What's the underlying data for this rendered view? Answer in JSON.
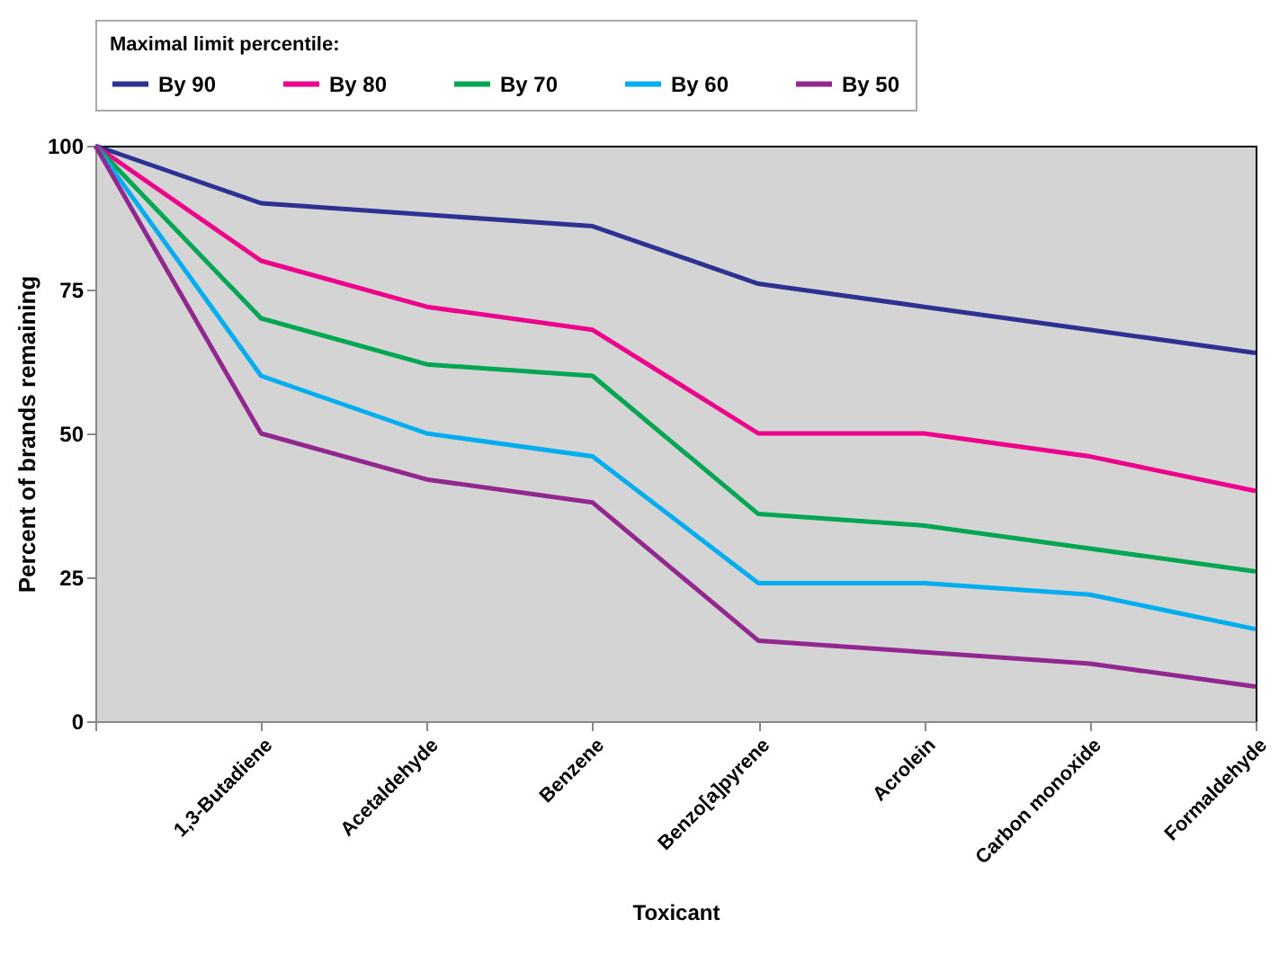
{
  "chart_data": {
    "type": "line",
    "xlabel": "Toxicant",
    "ylabel": "Percent of brands remaining",
    "legend_title": "Maximal limit percentile:",
    "legend": "top",
    "categories": [
      null,
      "1,3-Butadiene",
      "Acetaldehyde",
      "Benzene",
      "Benzo[a]pyrene",
      "Acrolein",
      "Carbon monoxide",
      "Formaldehyde"
    ],
    "ylim": [
      0,
      100
    ],
    "yticks": [
      0,
      25,
      50,
      75,
      100
    ],
    "grid": false,
    "marker": "none",
    "line_style": "solid",
    "series": [
      {
        "name": "By 90",
        "color": "#2e3192",
        "values": [
          100,
          90,
          88,
          86,
          76,
          72,
          68,
          64
        ]
      },
      {
        "name": "By 80",
        "color": "#ec008c",
        "values": [
          100,
          80,
          72,
          68,
          50,
          50,
          46,
          40
        ]
      },
      {
        "name": "By 70",
        "color": "#00a651",
        "values": [
          100,
          70,
          62,
          60,
          36,
          34,
          30,
          26
        ]
      },
      {
        "name": "By 60",
        "color": "#00aeef",
        "values": [
          100,
          60,
          50,
          46,
          24,
          24,
          22,
          16
        ]
      },
      {
        "name": "By 50",
        "color": "#92278f",
        "values": [
          100,
          50,
          42,
          38,
          14,
          12,
          10,
          6
        ]
      }
    ]
  }
}
